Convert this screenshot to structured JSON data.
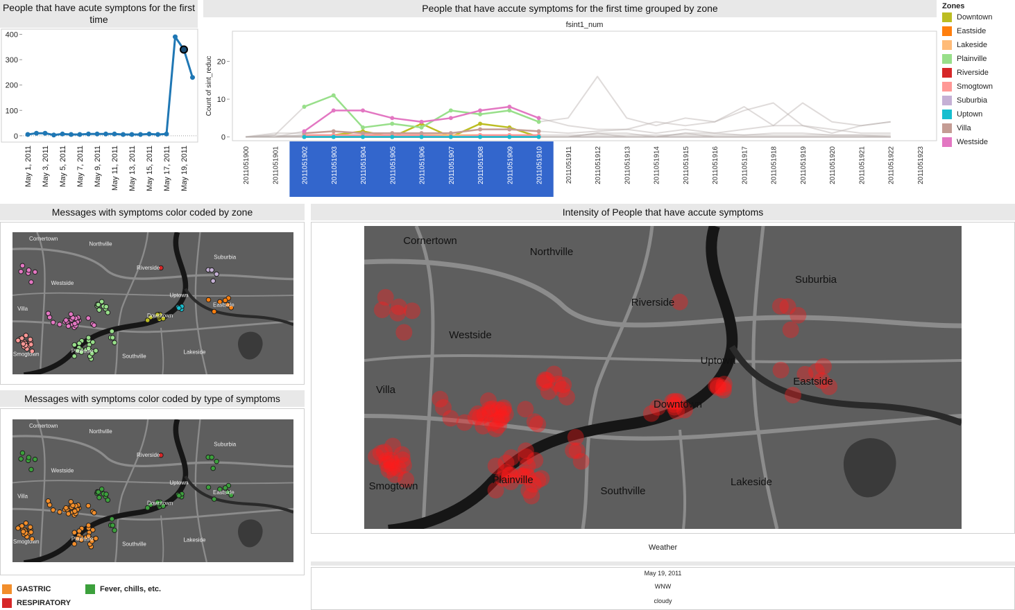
{
  "chart_data": [
    {
      "type": "line",
      "title": "People that have acute symptons for the first time",
      "categories": [
        "May 1, 2011",
        null,
        "May 3, 2011",
        null,
        "May 5, 2011",
        null,
        "May 7, 2011",
        null,
        "May 9, 2011",
        null,
        "May 11, 2011",
        null,
        "May 13, 2011",
        null,
        "May 15, 2011",
        null,
        "May 17, 2011",
        null,
        "May 19, 2011",
        null
      ],
      "values": [
        5,
        10,
        10,
        3,
        7,
        5,
        5,
        7,
        7,
        7,
        7,
        5,
        5,
        5,
        7,
        5,
        7,
        390,
        340,
        230
      ],
      "color": "#1f77b4",
      "selected_index": 18,
      "ylim": [
        -25,
        415
      ],
      "yticks": [
        0,
        100,
        200,
        300,
        400
      ],
      "grid": false
    },
    {
      "type": "line",
      "title": "People that have accute symptoms for the first time grouped by zone",
      "subtitle": "fsint1_num",
      "y_label": "Count of sint_reduc",
      "categories": [
        "2011051900",
        "2011051901",
        "2011051902",
        "2011051903",
        "2011051904",
        "2011051905",
        "2011051906",
        "2011051907",
        "2011051908",
        "2011051909",
        "2011051910",
        "2011051911",
        "2011051912",
        "2011051913",
        "2011051914",
        "2011051915",
        "2011051916",
        "2011051917",
        "2011051918",
        "2011051919",
        "2011051920",
        "2011051921",
        "2011051922",
        "2011051923"
      ],
      "selected_range": [
        2,
        10
      ],
      "series": [
        {
          "name": "Downtown",
          "color": "#bcbd22",
          "values": [
            0,
            0.5,
            0,
            0.5,
            1.5,
            0,
            3.5,
            0,
            3.5,
            2.5,
            0,
            0,
            1,
            1,
            0,
            1,
            1,
            0.5,
            1,
            1,
            0.5,
            0.5,
            0,
            null
          ]
        },
        {
          "name": "Eastside",
          "color": "#ff7f0e",
          "values": [
            0,
            0,
            0,
            0,
            0,
            0,
            0,
            0,
            0,
            0,
            0,
            0,
            0,
            0,
            0,
            0,
            0,
            0,
            0,
            0,
            0,
            0,
            0,
            null
          ]
        },
        {
          "name": "Lakeside",
          "color": "#ffbb78",
          "values": [
            0,
            0,
            0.5,
            0,
            0,
            0.5,
            0.5,
            0.5,
            0.5,
            0,
            0,
            0,
            1,
            0,
            0,
            1,
            0,
            0,
            0,
            0,
            0,
            0,
            0,
            null
          ]
        },
        {
          "name": "Plainville",
          "color": "#98df8a",
          "values": [
            0,
            0.5,
            8,
            11,
            2.5,
            3.5,
            2.5,
            7,
            6,
            7,
            4,
            5,
            16,
            5,
            3,
            5,
            4,
            7,
            9,
            3,
            1,
            3,
            4,
            null
          ]
        },
        {
          "name": "Riverside",
          "color": "#d62728",
          "values": [
            0,
            0,
            0,
            0,
            0,
            0,
            0,
            0,
            0,
            0,
            0,
            0,
            0,
            0,
            0,
            0,
            0,
            0,
            0,
            0,
            0,
            0,
            0,
            null
          ]
        },
        {
          "name": "Smogtown",
          "color": "#ff9896",
          "values": [
            0,
            0,
            0.5,
            0.5,
            0.5,
            0.5,
            0.5,
            0,
            0.5,
            0.5,
            0.5,
            0.5,
            0.5,
            0.5,
            0.5,
            0.5,
            0.5,
            0.5,
            0.5,
            0.5,
            0.5,
            0.5,
            0.5,
            null
          ]
        },
        {
          "name": "Suburbia",
          "color": "#c5b0d5",
          "values": [
            0,
            0,
            0,
            0,
            0,
            0,
            0,
            0,
            0,
            0,
            0,
            0,
            0,
            0,
            0,
            0,
            0,
            0,
            0,
            0,
            0,
            0,
            0,
            null
          ]
        },
        {
          "name": "Uptown",
          "color": "#17becf",
          "values": [
            0,
            0,
            0,
            0,
            0,
            0,
            0,
            0,
            0,
            0,
            0,
            0,
            0,
            0,
            0,
            0,
            0,
            0,
            0,
            0,
            0,
            0,
            0,
            null
          ]
        },
        {
          "name": "Villa",
          "color": "#c49c94",
          "values": [
            0,
            1,
            1,
            1.5,
            1,
            1,
            1,
            1,
            2,
            2,
            1.5,
            1,
            1.5,
            2,
            1,
            2,
            1,
            2,
            3,
            3,
            2,
            1,
            1,
            null
          ]
        },
        {
          "name": "Westside",
          "color": "#e377c2",
          "values": [
            0,
            0,
            1.5,
            7,
            7,
            5,
            4,
            5,
            7,
            8,
            5,
            3,
            2,
            2,
            4,
            3,
            4,
            8,
            3,
            9,
            4,
            3,
            4,
            null
          ]
        }
      ],
      "ylim": [
        -1,
        28
      ],
      "yticks": [
        0,
        10,
        20
      ],
      "grid": false,
      "legend": "right"
    }
  ],
  "zone_legend": {
    "title": "Zones"
  },
  "maps": [
    {
      "title": "Messages with symptoms color coded by zone"
    },
    {
      "title": "Messages with symptoms color coded by type of symptoms"
    },
    {
      "title": "Intensity of People that have accute symptoms"
    }
  ],
  "place_labels": [
    "Cornertown",
    "Northville",
    "Riverside",
    "Suburbia",
    "Westside",
    "Uptown",
    "Eastside",
    "Villa",
    "Downtown",
    "Lakeside",
    "Smogtown",
    "Plainville",
    "Southville"
  ],
  "symptom_legend": [
    {
      "name": "GASTRIC",
      "color": "#f28e2b"
    },
    {
      "name": "Fever, chills, etc.",
      "color": "#3ca03c"
    },
    {
      "name": "RESPIRATORY",
      "color": "#d62728"
    }
  ],
  "weather": {
    "title": "Weather",
    "date": "May 19, 2011",
    "wind": "WNW",
    "sky": "cloudy"
  }
}
